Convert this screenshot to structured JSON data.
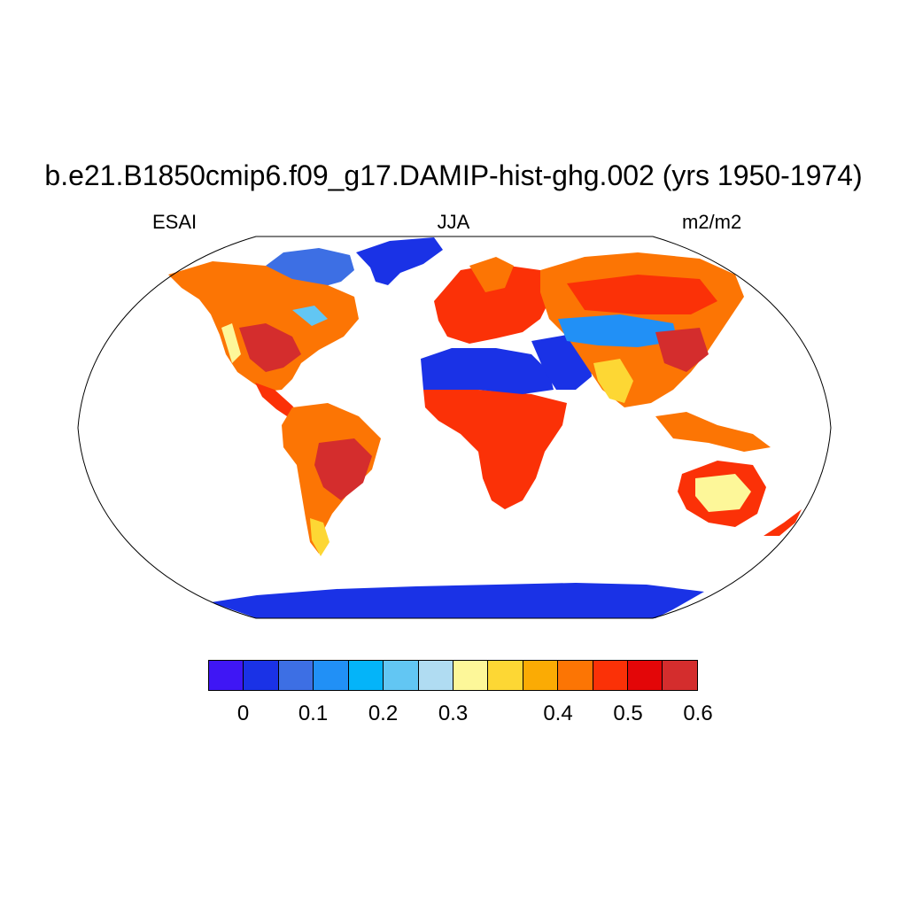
{
  "title": "b.e21.B1850cmip6.f09_g17.DAMIP-hist-ghg.002 (yrs 1950-1974)",
  "subtitle_left": "ESAI",
  "subtitle_center": "JJA",
  "subtitle_right": "m2/m2",
  "colorbar": {
    "colors": [
      "#3f16f5",
      "#1a32e6",
      "#3d6fe4",
      "#2190f6",
      "#04b4f9",
      "#62c6f3",
      "#b0dcf2",
      "#fdf799",
      "#fdd734",
      "#fbab04",
      "#fc7504",
      "#fb3107",
      "#e30608",
      "#d42d2d"
    ],
    "tick_labels": [
      "0",
      "0.1",
      "0.2",
      "0.3",
      "0.4",
      "0.5",
      "0.6"
    ],
    "tick_values": [
      0,
      0.1,
      0.2,
      0.3,
      0.4,
      0.5,
      0.6
    ],
    "levels": [
      0,
      0.05,
      0.1,
      0.15,
      0.2,
      0.25,
      0.3,
      0.35,
      0.4,
      0.45,
      0.5,
      0.55,
      0.6,
      0.65
    ]
  },
  "chart_data": {
    "type": "heatmap",
    "projection": "Robinson",
    "variable": "ESAI",
    "season": "JJA",
    "units": "m2/m2",
    "colorbar_range": [
      0,
      0.65
    ],
    "regions": [
      {
        "name": "Greenland",
        "value": 0.02
      },
      {
        "name": "Antarctica",
        "value": 0.02
      },
      {
        "name": "Sahara",
        "value": 0.03
      },
      {
        "name": "Arabian Peninsula",
        "value": 0.03
      },
      {
        "name": "Northern Canada",
        "value": 0.15
      },
      {
        "name": "North America",
        "value": 0.5
      },
      {
        "name": "South America",
        "value": 0.58
      },
      {
        "name": "Sub-Saharan Africa",
        "value": 0.55
      },
      {
        "name": "Europe",
        "value": 0.55
      },
      {
        "name": "Northern Asia",
        "value": 0.5
      },
      {
        "name": "Central Asia",
        "value": 0.18
      },
      {
        "name": "South Asia",
        "value": 0.35
      },
      {
        "name": "Southeast Asia",
        "value": 0.5
      },
      {
        "name": "Australia interior",
        "value": 0.32
      },
      {
        "name": "Australia margins",
        "value": 0.55
      },
      {
        "name": "New Zealand",
        "value": 0.55
      }
    ]
  }
}
